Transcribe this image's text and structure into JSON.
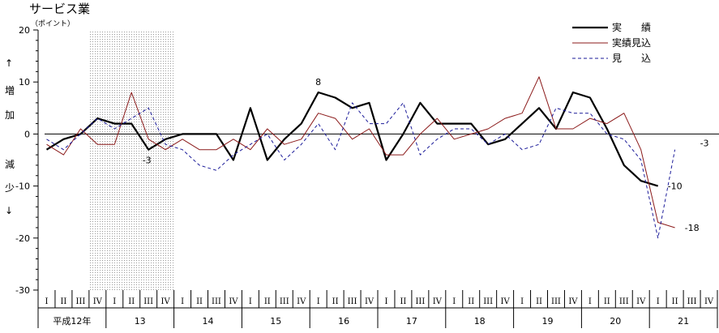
{
  "chart_data": {
    "type": "line",
    "title": "サービス業",
    "unit_label": "（ポイント）",
    "y_axis_chars": [
      "↑",
      "増",
      "加",
      "減",
      "少",
      "↓"
    ],
    "ylim": [
      -30,
      20
    ],
    "yticks": [
      "20",
      "10",
      "0",
      "-10",
      "-20",
      "-30"
    ],
    "ytick_values": [
      20,
      10,
      0,
      -10,
      -20,
      -30
    ],
    "quarter_labels": [
      "I",
      "II",
      "III",
      "IV"
    ],
    "years": [
      "平成12年",
      "13",
      "14",
      "15",
      "16",
      "17",
      "18",
      "19",
      "20",
      "21"
    ],
    "shaded_quarters": [
      3,
      8
    ],
    "grid": false,
    "legend_position": "top-right",
    "series": [
      {
        "name": "実　　績",
        "color": "#000000",
        "style": "solid-thick",
        "values": [
          -3,
          -1,
          0,
          3,
          2,
          2,
          -3,
          -1,
          0,
          0,
          0,
          -5,
          5,
          -5,
          -1,
          2,
          8,
          7,
          5,
          6,
          -5,
          0,
          6,
          2,
          2,
          2,
          -2,
          -1,
          2,
          5,
          1,
          8,
          7,
          1,
          -6,
          -9,
          -10,
          null,
          null,
          null
        ]
      },
      {
        "name": "実績見込",
        "color": "#8b1a1a",
        "style": "solid-thin",
        "values": [
          -2,
          -4,
          1,
          -2,
          -2,
          8,
          -1,
          -3,
          -1,
          -3,
          -3,
          -1,
          -3,
          1,
          -2,
          -1,
          4,
          3,
          -1,
          1,
          -4,
          -4,
          0,
          3,
          -1,
          0,
          1,
          3,
          4,
          11,
          1,
          1,
          3,
          2,
          4,
          -3,
          -17,
          -18,
          null,
          null
        ]
      },
      {
        "name": "見　　込",
        "color": "#1a1a99",
        "style": "dashed",
        "values": [
          -1,
          -3,
          0,
          3,
          1,
          3,
          5,
          -2,
          -3,
          -6,
          -7,
          -4,
          -2,
          0,
          -5,
          -2,
          2,
          -3,
          6,
          2,
          2,
          6,
          -4,
          -1,
          1,
          1,
          -2,
          0,
          -3,
          -2,
          5,
          4,
          4,
          0,
          -1,
          -5,
          -20,
          -3,
          null,
          null
        ]
      }
    ],
    "annotations": [
      {
        "text": "-3",
        "quarter": 6,
        "value": -3
      },
      {
        "text": "8",
        "quarter": 16,
        "value": 8
      },
      {
        "text": "-10",
        "quarter": 36,
        "value": -10
      },
      {
        "text": "-18",
        "quarter": 37,
        "value": -18
      },
      {
        "text": "-3",
        "quarter": 38,
        "value": -3
      }
    ]
  }
}
